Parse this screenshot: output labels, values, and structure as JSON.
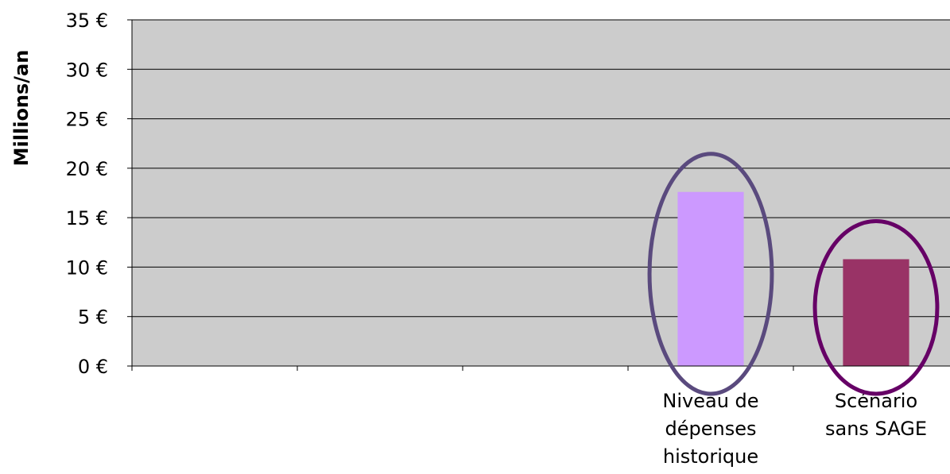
{
  "chart_data": {
    "type": "bar",
    "ylabel": "Millions/an",
    "ylim": [
      0,
      35
    ],
    "yticks": [
      0,
      5,
      10,
      15,
      20,
      25,
      30,
      35
    ],
    "ytick_labels": [
      "0 €",
      "5 €",
      "10 €",
      "15 €",
      "20 €",
      "25 €",
      "30 €",
      "35 €"
    ],
    "categories": [
      "",
      "",
      "",
      "Niveau de dépenses historique",
      "Scénario sans SAGE"
    ],
    "category_label_lines": [
      [],
      [],
      [],
      [
        "Niveau de",
        "dépenses",
        "historique"
      ],
      [
        "Scénario",
        "sans SAGE"
      ]
    ],
    "values": [
      null,
      null,
      null,
      17.6,
      10.8
    ],
    "bar_colors": [
      "",
      "",
      "",
      "#cc99ff",
      "#993366"
    ],
    "grid": true,
    "plot_background": "#cccccc",
    "highlight_ellipses": [
      {
        "category": "Niveau de dépenses historique",
        "color": "#5a4a7e"
      },
      {
        "category": "Scénario sans SAGE",
        "color": "#660066"
      }
    ]
  }
}
